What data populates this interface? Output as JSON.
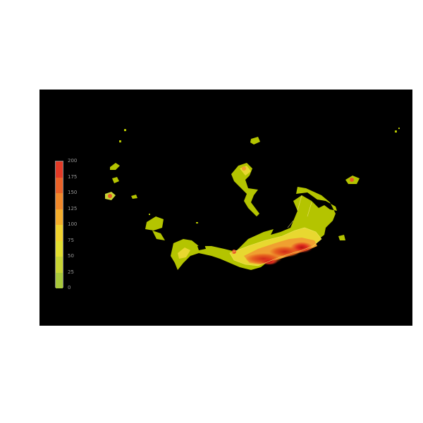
{
  "chart_data": {
    "type": "heatmap",
    "title": "",
    "legend": {
      "placement": "left",
      "ticks": [
        "0",
        "25",
        "50",
        "75",
        "100",
        "125",
        "150",
        "175",
        "200"
      ],
      "bands": [
        {
          "from": 0,
          "to": 25,
          "color": "#a8c83a"
        },
        {
          "from": 25,
          "to": 50,
          "color": "#c8d434"
        },
        {
          "from": 50,
          "to": 75,
          "color": "#e2de30"
        },
        {
          "from": 75,
          "to": 100,
          "color": "#f0d22e"
        },
        {
          "from": 100,
          "to": 125,
          "color": "#f4ae2c"
        },
        {
          "from": 125,
          "to": 150,
          "color": "#f0882a"
        },
        {
          "from": 150,
          "to": 175,
          "color": "#ea6228"
        },
        {
          "from": 175,
          "to": 200,
          "color": "#e23a26"
        }
      ]
    },
    "background": "#000000",
    "colors": {
      "low": "#b4c400",
      "mid": "#e8d830",
      "high": "#e0301e"
    }
  }
}
